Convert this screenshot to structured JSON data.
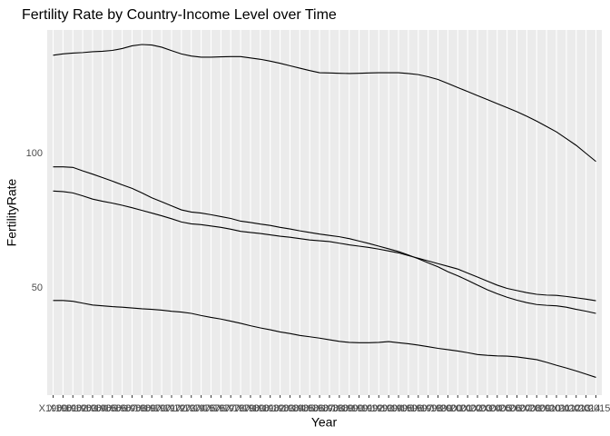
{
  "chart_data": {
    "type": "line",
    "title": "Fertility Rate by Country-Income Level over Time",
    "x_label": "Year",
    "y_label": "FertilityRate",
    "categories": [
      "X1960",
      "X1961",
      "X1962",
      "X1963",
      "X1964",
      "X1965",
      "X1966",
      "X1967",
      "X1968",
      "X1969",
      "X1970",
      "X1971",
      "X1972",
      "X1973",
      "X1974",
      "X1975",
      "X1976",
      "X1977",
      "X1978",
      "X1979",
      "X1980",
      "X1981",
      "X1982",
      "X1983",
      "X1984",
      "X1985",
      "X1986",
      "X1987",
      "X1988",
      "X1989",
      "X1990",
      "X1991",
      "X1992",
      "X1993",
      "X1994",
      "X1995",
      "X1996",
      "X1997",
      "X1998",
      "X1999",
      "X2000",
      "X2001",
      "X2002",
      "X2003",
      "X2004",
      "X2005",
      "X2006",
      "X2007",
      "X2008",
      "X2009",
      "X2010",
      "X2011",
      "X2012",
      "X2013",
      "X2014",
      "X2015"
    ],
    "series": [
      {
        "color": "#000000",
        "values": [
          136.5,
          137,
          137.3,
          137.5,
          137.8,
          138,
          138.3,
          139,
          140,
          140.5,
          140.3,
          139.5,
          138.2,
          137,
          136.2,
          135.8,
          135.8,
          135.9,
          136,
          136,
          135.5,
          135,
          134.3,
          133.5,
          132.6,
          131.7,
          130.8,
          130,
          129.9,
          129.8,
          129.7,
          129.8,
          129.9,
          130,
          130,
          130,
          129.7,
          129.3,
          128.5,
          127.5,
          126,
          124.5,
          123,
          121.5,
          120,
          118.5,
          117,
          115.5,
          113.8,
          112,
          110,
          108,
          105.5,
          103,
          100,
          97
        ]
      },
      {
        "color": "#000000",
        "values": [
          95,
          95,
          94.8,
          93.5,
          92.3,
          91,
          89.7,
          88.3,
          87,
          85.3,
          83.5,
          82,
          80.5,
          79,
          78.2,
          77.8,
          77.2,
          76.5,
          75.8,
          74.8,
          74.3,
          73.7,
          73.2,
          72.5,
          71.9,
          71.2,
          70.6,
          70,
          69.5,
          69,
          68.3,
          67.4,
          66.5,
          65.5,
          64.5,
          63.5,
          62.2,
          60.8,
          59.3,
          57.8,
          56,
          54.5,
          52.8,
          51,
          49.3,
          47.8,
          46.5,
          45.4,
          44.5,
          43.8,
          43.5,
          43.3,
          42.8,
          42,
          41.3,
          40.5
        ]
      },
      {
        "color": "#000000",
        "values": [
          86,
          85.8,
          85.3,
          84.2,
          83,
          82.2,
          81.5,
          80.7,
          79.8,
          78.8,
          77.8,
          76.8,
          75.7,
          74.5,
          73.8,
          73.5,
          73,
          72.5,
          71.8,
          71,
          70.6,
          70.2,
          69.7,
          69.2,
          68.8,
          68.3,
          67.8,
          67.5,
          67.2,
          66.6,
          66,
          65.5,
          65,
          64.4,
          63.7,
          63,
          62,
          61,
          60,
          59,
          58,
          57,
          55.5,
          54,
          52.5,
          51,
          49.8,
          49,
          48.2,
          47.6,
          47.3,
          47.2,
          46.8,
          46.3,
          45.8,
          45.2
        ]
      },
      {
        "color": "#000000",
        "values": [
          45.3,
          45.3,
          45,
          44.3,
          43.6,
          43.3,
          43,
          42.8,
          42.5,
          42.2,
          42,
          41.7,
          41.3,
          41,
          40.5,
          39.7,
          39,
          38.4,
          37.6,
          36.8,
          35.9,
          35.1,
          34.4,
          33.6,
          33,
          32.3,
          31.8,
          31.3,
          30.7,
          30.1,
          29.7,
          29.6,
          29.6,
          29.7,
          30,
          29.6,
          29.2,
          28.7,
          28.1,
          27.5,
          27,
          26.5,
          25.9,
          25.2,
          24.9,
          24.7,
          24.6,
          24.3,
          23.8,
          23.3,
          22.3,
          21.2,
          20.2,
          19.1,
          17.9,
          16.7
        ]
      }
    ],
    "ylim": [
      10.1,
      145.9
    ],
    "yticks": [
      50,
      100
    ],
    "grid": true
  }
}
